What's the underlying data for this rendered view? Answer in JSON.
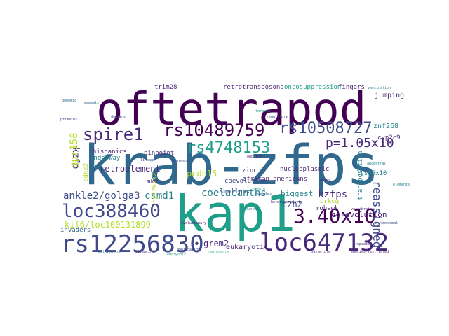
{
  "palette": {
    "dark_purple": "#440154",
    "purple": "#482878",
    "indigo": "#3e4a89",
    "blue": "#31688e",
    "teal": "#26828e",
    "green_teal": "#1f9e89",
    "green": "#35b779",
    "light_green": "#6ece58",
    "yellow_green": "#b5de2b",
    "yellow": "#fde725"
  },
  "words": [
    "krab-zfps",
    "oftetrapod",
    "kap1",
    "rs12256830",
    "loc647132",
    "loc388460",
    "3.40x10",
    "rs10489759",
    "rs10508727",
    "spire1",
    "rs4748153",
    "p=1.05x10",
    "retroelement",
    "kzfp",
    "gpr158",
    "ankle2/golga3",
    "csmd1",
    "coelacanths",
    "pcdh15",
    "c2h2",
    "reassigned",
    "kzfps",
    "biggest",
    "kif6/loc100131899",
    "grem2",
    "eukaryotic",
    "co-evolution",
    "invaders",
    "mohawk",
    "hispanics",
    "underway",
    "zinc",
    "african americans",
    "smallpox",
    "coevolution",
    "trim28",
    "retrotransposons",
    "oncosuppression",
    "fingers",
    "jumping",
    "nucleoplasmic",
    "pinpoint",
    "lys95x10",
    "znf268",
    "cyp2c9",
    "transposition",
    "prkcq",
    "mkx",
    "adhz2",
    "cys2his2",
    "lineage",
    "evolutionary",
    "repeated",
    "species-restricted",
    "hunted",
    "ongoing",
    "examples",
    "highly",
    "vaccination",
    "structure",
    "chromosomal",
    "ancestral",
    "genomic",
    "embryonic",
    "silencing",
    "duplication",
    "domains",
    "repressors",
    "methylation",
    "heterochromatin",
    "binding",
    "regulatory",
    "targets",
    "primates",
    "mammals",
    "vertebrates",
    "sequences",
    "elements",
    "waves"
  ]
}
